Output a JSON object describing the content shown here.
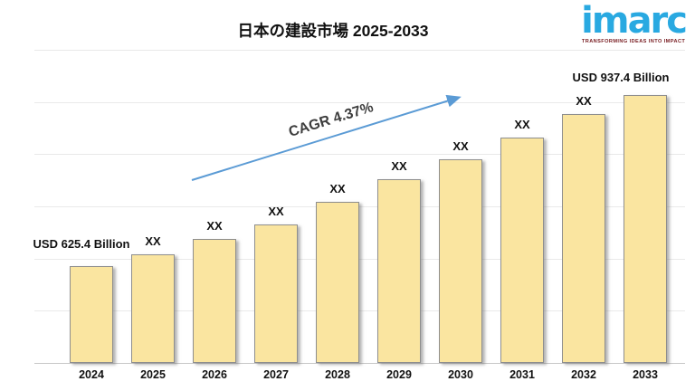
{
  "title": "日本の建設市場 2025-2033",
  "logo": {
    "text": "imarc",
    "tagline": "TRANSFORMING IDEAS INTO IMPACT"
  },
  "annotations": {
    "cagr": "CAGR 4.37%",
    "start_value": "USD 625.4 Billion",
    "end_value": "USD 937.4 Billion"
  },
  "colors": {
    "bar_fill": "#FAE5A0",
    "bar_border": "#8E8E8E",
    "gridline": "#E9E9E9",
    "axis": "#C8C8C8",
    "arrow": "#5B9BD5",
    "brand_blue": "#29A9E1",
    "tagline_red": "#7A2025",
    "text": "#111111"
  },
  "chart_data": {
    "type": "bar",
    "title": "日本の建設市場 2025-2033",
    "categories": [
      "2024",
      "2025",
      "2026",
      "2027",
      "2028",
      "2029",
      "2030",
      "2031",
      "2032",
      "2033"
    ],
    "bar_labels": [
      "USD 625.4 Billion",
      "XX",
      "XX",
      "XX",
      "XX",
      "XX",
      "XX",
      "XX",
      "XX",
      "USD 937.4 Billion"
    ],
    "values_usd_billion": [
      625.4,
      null,
      null,
      null,
      null,
      null,
      null,
      null,
      null,
      937.4
    ],
    "estimated_values_usd_billion": [
      625.4,
      647,
      674,
      701,
      742,
      784,
      820,
      860,
      903,
      937.4
    ],
    "cagr_percent": 4.37,
    "bar_height_pct": [
      30.9,
      34.7,
      39.6,
      44.2,
      51.4,
      58.7,
      65.0,
      72.0,
      79.5,
      85.5
    ],
    "grid": true,
    "legend": false,
    "xlabel": "",
    "ylabel": "",
    "unit": "USD Billion"
  }
}
